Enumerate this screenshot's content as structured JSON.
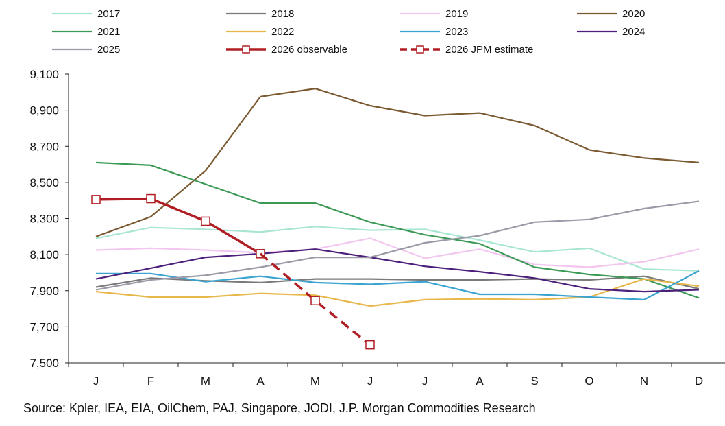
{
  "chart_data": {
    "type": "line",
    "title": "",
    "xlabel": "",
    "ylabel": "",
    "categories": [
      "J",
      "F",
      "M",
      "A",
      "M",
      "J",
      "J",
      "A",
      "S",
      "O",
      "N",
      "D"
    ],
    "ylim": [
      7500,
      9100
    ],
    "yticks": [
      7500,
      7700,
      7900,
      8100,
      8300,
      8500,
      8700,
      8900,
      9100
    ],
    "ytick_labels": [
      "7,500",
      "7,700",
      "7,900",
      "8,100",
      "8,300",
      "8,500",
      "8,700",
      "8,900",
      "9,100"
    ],
    "grid": false,
    "legend_position": "top",
    "series": [
      {
        "name": "2017",
        "color": "#a8e6d2",
        "style": "solid",
        "values": [
          8190,
          8250,
          8240,
          8225,
          8255,
          8235,
          8240,
          8180,
          8115,
          8135,
          8020,
          8010
        ]
      },
      {
        "name": "2018",
        "color": "#7a7a7a",
        "style": "solid",
        "values": [
          7920,
          7970,
          7955,
          7945,
          7965,
          7965,
          7960,
          7960,
          7965,
          7960,
          7980,
          7910
        ]
      },
      {
        "name": "2019",
        "color": "#f2c6ee",
        "style": "solid",
        "values": [
          8125,
          8135,
          8125,
          8110,
          8130,
          8190,
          8080,
          8130,
          8045,
          8030,
          8060,
          8130
        ]
      },
      {
        "name": "2020",
        "color": "#7b5a32",
        "style": "solid",
        "values": [
          8200,
          8310,
          8565,
          8975,
          9020,
          8925,
          8870,
          8885,
          8815,
          8680,
          8635,
          8610
        ]
      },
      {
        "name": "2021",
        "color": "#3c9a56",
        "style": "solid",
        "values": [
          8610,
          8595,
          8490,
          8385,
          8385,
          8280,
          8210,
          8160,
          8030,
          7990,
          7965,
          7860
        ]
      },
      {
        "name": "2022",
        "color": "#e8b74a",
        "style": "solid",
        "values": [
          7895,
          7865,
          7865,
          7885,
          7875,
          7815,
          7850,
          7855,
          7850,
          7865,
          7965,
          7925
        ]
      },
      {
        "name": "2023",
        "color": "#3aa3cf",
        "style": "solid",
        "values": [
          7995,
          7995,
          7950,
          7980,
          7945,
          7935,
          7950,
          7880,
          7880,
          7865,
          7850,
          8010
        ]
      },
      {
        "name": "2024",
        "color": "#4b1f7a",
        "style": "solid",
        "values": [
          7965,
          8025,
          8085,
          8105,
          8130,
          8085,
          8035,
          8005,
          7970,
          7910,
          7895,
          7905
        ]
      },
      {
        "name": "2025",
        "color": "#9a9aa8",
        "style": "solid",
        "values": [
          7905,
          7960,
          7985,
          8030,
          8085,
          8085,
          8165,
          8205,
          8280,
          8295,
          8355,
          8395
        ]
      },
      {
        "name": "2026 observable",
        "color": "#b01e23",
        "style": "solid-marker",
        "values": [
          8405,
          8410,
          8285,
          8105,
          null,
          null,
          null,
          null,
          null,
          null,
          null,
          null
        ]
      },
      {
        "name": "2026 JPM estimate",
        "color": "#b01e23",
        "style": "dashed-marker",
        "values": [
          null,
          null,
          null,
          8105,
          7845,
          7600,
          null,
          null,
          null,
          null,
          null,
          null
        ]
      }
    ]
  },
  "source_note": "Source: Kpler, IEA, EIA, OilChem, PAJ, Singapore, JODI, J.P. Morgan Commodities Research"
}
